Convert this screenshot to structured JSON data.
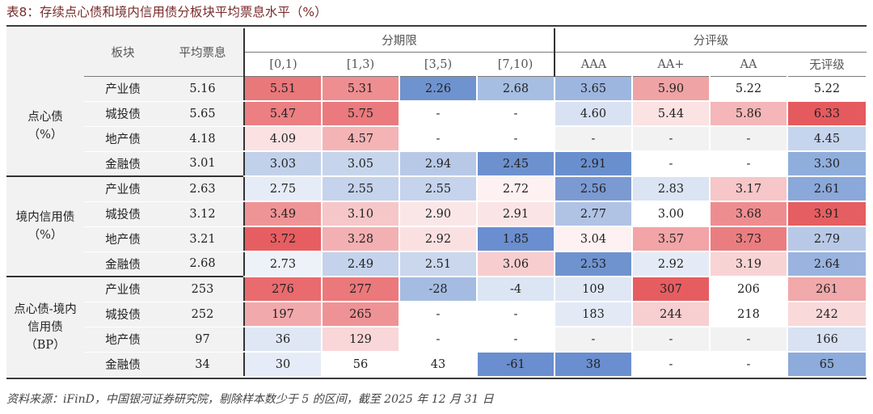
{
  "title": "表8：存续点心债和境内信用债分板块平均票息水平（%）",
  "header": {
    "col_block": "板块",
    "col_avg": "平均票息",
    "group_term": "分期限",
    "group_rating": "分评级",
    "terms": [
      "[0,1)",
      "[1,3)",
      "[3,5)",
      "[7,10)"
    ],
    "ratings": [
      "AAA",
      "AA+",
      "AA",
      "无评级"
    ]
  },
  "groups": [
    {
      "label_line1": "点心债",
      "label_line2": "（%）",
      "label_line3": "",
      "rows": [
        {
          "sector": "产业债",
          "avg": "5.16",
          "cells": [
            "5.51",
            "5.31",
            "2.26",
            "2.68",
            "3.65",
            "5.90",
            "5.22",
            "5.22"
          ],
          "colors": [
            "#e9787b",
            "#ee8e90",
            "#6f93cf",
            "#a7bee3",
            "#9db6e0",
            "#f0a3a5",
            "#ffffff",
            "#ffffff"
          ]
        },
        {
          "sector": "城投债",
          "avg": "5.65",
          "cells": [
            "5.47",
            "5.75",
            "-",
            "-",
            "4.60",
            "5.44",
            "5.86",
            "6.33"
          ],
          "colors": [
            "#eb7f82",
            "#ea7a7d",
            "#ffffff",
            "#ffffff",
            "#d9e2f2",
            "#fbe2e3",
            "#f4b6b8",
            "#e55a5e"
          ]
        },
        {
          "sector": "地产债",
          "avg": "4.18",
          "cells": [
            "4.09",
            "4.57",
            "-",
            "-",
            "-",
            "-",
            "-",
            "4.45"
          ],
          "colors": [
            "#fbe1e2",
            "#f4b4b6",
            "#ffffff",
            "#ffffff",
            "#f2f2f2",
            "#f2f2f2",
            "#f2f2f2",
            "#c6d5ee"
          ]
        },
        {
          "sector": "金融债",
          "avg": "3.01",
          "cells": [
            "3.03",
            "3.05",
            "2.94",
            "2.45",
            "2.91",
            "-",
            "-",
            "3.30"
          ],
          "colors": [
            "#c2d1ea",
            "#c7d5ec",
            "#b8c9e7",
            "#6d91cf",
            "#6a8fce",
            "#ffffff",
            "#ffffff",
            "#90aedc"
          ]
        }
      ]
    },
    {
      "label_line1": "境内信用债",
      "label_line2": "（%）",
      "label_line3": "",
      "rows": [
        {
          "sector": "产业债",
          "avg": "2.63",
          "cells": [
            "2.75",
            "2.55",
            "2.55",
            "2.72",
            "2.56",
            "2.83",
            "3.17",
            "2.61"
          ],
          "colors": [
            "#e6ecf7",
            "#c5d3ec",
            "#c5d3ec",
            "#fdf1f2",
            "#7b9ad2",
            "#dbe4f3",
            "#f6c6c8",
            "#8aa8d9"
          ]
        },
        {
          "sector": "城投债",
          "avg": "3.12",
          "cells": [
            "3.49",
            "3.10",
            "2.90",
            "2.91",
            "2.77",
            "3.00",
            "3.68",
            "3.91"
          ],
          "colors": [
            "#ef9496",
            "#f6c7c9",
            "#fbe6e7",
            "#fbe4e5",
            "#b0c3e5",
            "#ffffff",
            "#ee8d90",
            "#e55e61"
          ]
        },
        {
          "sector": "地产债",
          "avg": "3.21",
          "cells": [
            "3.72",
            "3.28",
            "2.92",
            "1.85",
            "3.04",
            "3.57",
            "3.73",
            "2.79"
          ],
          "colors": [
            "#e75e62",
            "#f3b0b2",
            "#fbe0e1",
            "#6a8ecf",
            "#fdf1f1",
            "#f2a4a6",
            "#ea7d80",
            "#b8c9e7"
          ]
        },
        {
          "sector": "金融债",
          "avg": "2.68",
          "cells": [
            "2.73",
            "2.49",
            "2.51",
            "3.06",
            "2.53",
            "2.92",
            "3.19",
            "2.64"
          ],
          "colors": [
            "#edf1f8",
            "#c4d2eb",
            "#cad7ed",
            "#f7cdcf",
            "#6f93cf",
            "#e5ebf6",
            "#f8d3d4",
            "#9bb4df"
          ]
        }
      ]
    },
    {
      "label_line1": "点心债-境内",
      "label_line2": "信用债",
      "label_line3": "（BP）",
      "rows": [
        {
          "sector": "产业债",
          "avg": "253",
          "cells": [
            "276",
            "277",
            "-28",
            "-4",
            "109",
            "307",
            "206",
            "261"
          ],
          "colors": [
            "#e96b6e",
            "#eb787b",
            "#a5bce2",
            "#dce5f3",
            "#dfe7f4",
            "#e65d61",
            "#ffffff",
            "#f1a9ab"
          ]
        },
        {
          "sector": "城投债",
          "avg": "252",
          "cells": [
            "197",
            "265",
            "-",
            "-",
            "183",
            "244",
            "218",
            "242"
          ],
          "colors": [
            "#f2a9ab",
            "#ef9295",
            "#ffffff",
            "#ffffff",
            "#e3eaf5",
            "#f7cfd0",
            "#ffffff",
            "#f9d9da"
          ]
        },
        {
          "sector": "地产债",
          "avg": "97",
          "cells": [
            "36",
            "129",
            "-",
            "-",
            "-",
            "-",
            "-",
            "166"
          ],
          "colors": [
            "#dfe7f4",
            "#f9d6d7",
            "#ffffff",
            "#ffffff",
            "#f2f2f2",
            "#f2f2f2",
            "#f2f2f2",
            "#d8e2f2"
          ]
        },
        {
          "sector": "金融债",
          "avg": "34",
          "cells": [
            "30",
            "56",
            "43",
            "-61",
            "38",
            "-",
            "-",
            "65"
          ],
          "colors": [
            "#e6ecf7",
            "#ffffff",
            "#ffffff",
            "#6a8ecf",
            "#6a8ecf",
            "#ffffff",
            "#ffffff",
            "#8dabdb"
          ]
        }
      ]
    }
  ],
  "source": "资料来源：iFinD，中国银河证券研究院，剔除样本数少于 5 的区间，截至 2025 年 12 月 31 日"
}
